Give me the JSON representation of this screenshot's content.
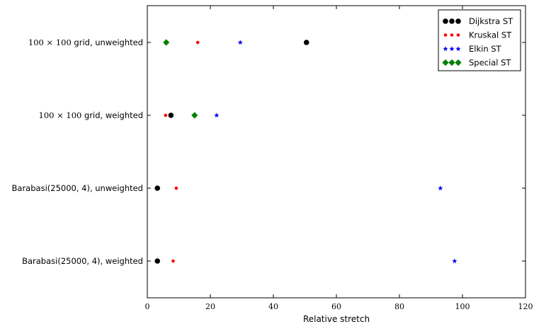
{
  "chart_data": {
    "type": "scatter",
    "title": "",
    "xlabel": "Relative stretch",
    "ylabel": "",
    "xlim": [
      0,
      120
    ],
    "xticks": [
      0,
      20,
      40,
      60,
      80,
      100,
      120
    ],
    "grid": false,
    "legend_position": "top-right",
    "categories": [
      {
        "prefix": "100 × 100",
        "suffix": " grid, unweighted"
      },
      {
        "prefix": "100 × 100",
        "suffix": " grid, weighted"
      },
      {
        "prefix": "Barabasi",
        "suffix": "(25000, 4), unweighted"
      },
      {
        "prefix": "Barabasi",
        "suffix": "(25000, 4), weighted"
      }
    ],
    "series": [
      {
        "name": "Dijkstra ST",
        "marker": "circle",
        "color": "#000000",
        "values": [
          50.5,
          7.5,
          3.2,
          3.2
        ]
      },
      {
        "name": "Kruskal ST",
        "marker": "small-circle",
        "color": "#ff0000",
        "values": [
          16,
          5.8,
          9.2,
          8.2
        ]
      },
      {
        "name": "Elkin ST",
        "marker": "star",
        "color": "#0000ff",
        "values": [
          29.5,
          22,
          93,
          97.5
        ]
      },
      {
        "name": "Special ST",
        "marker": "diamond",
        "color": "#008000",
        "values": [
          6,
          15,
          null,
          null
        ]
      }
    ]
  }
}
